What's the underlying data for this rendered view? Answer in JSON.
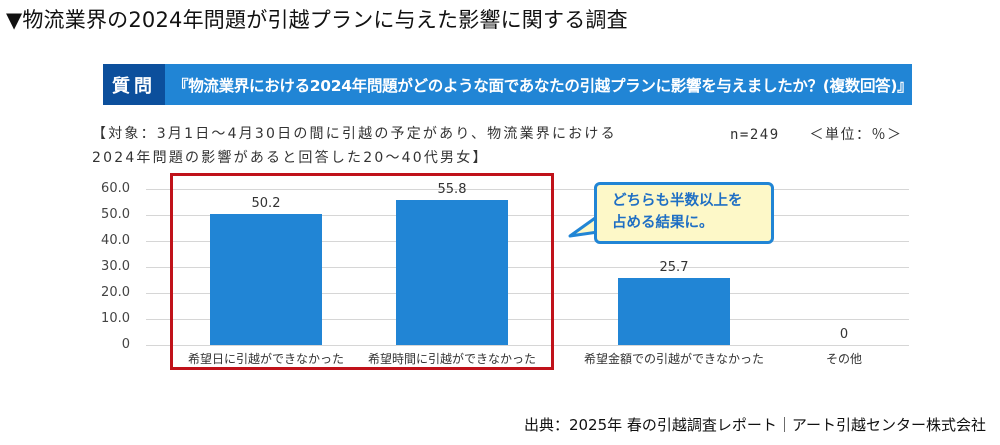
{
  "page_title": "▼物流業界の2024年問題が引越プランに与えた影響に関する調査",
  "question_banner": {
    "tag": "質問",
    "text": "『物流業界における2024年問題がどのような面であなたの引越プランに影響を与えましたか？(複数回答)』",
    "tag_color": "#0c4f9c",
    "bar_color": "#2185d5"
  },
  "target_note": {
    "line1": "【対象：3月1日～4月30日の間に引越の予定があり、物流業界における",
    "line2": "2024年問題の影響があると回答した20～40代男女】"
  },
  "sample_info": {
    "n": "n=249",
    "unit": "＜単位：％＞"
  },
  "callout": {
    "line1": "どちらも半数以上を",
    "line2": "占める結果に。"
  },
  "source": "出典：2025年 春の引越調査レポート｜アート引越センター株式会社",
  "chart_data": {
    "type": "bar",
    "title": "物流業界における2024年問題がどのような面であなたの引越プランに影響を与えましたか？(複数回答)",
    "categories": [
      "希望日に引越ができなかった",
      "希望時間に引越ができなかった",
      "希望金額での引越ができなかった",
      "その他"
    ],
    "values": [
      50.2,
      55.8,
      25.7,
      0
    ],
    "value_labels": [
      "50.2",
      "55.8",
      "25.7",
      "0"
    ],
    "xlabel": "",
    "ylabel": "",
    "ylim": [
      0,
      60
    ],
    "yticks": [
      "60.0",
      "50.0",
      "40.0",
      "30.0",
      "20.0",
      "10.0",
      "0"
    ],
    "grid": true,
    "legend": false,
    "bar_color": "#2185d5",
    "highlighted_categories": [
      0,
      1
    ],
    "highlight_color": "#c0121a",
    "units": "%",
    "n": 249
  }
}
